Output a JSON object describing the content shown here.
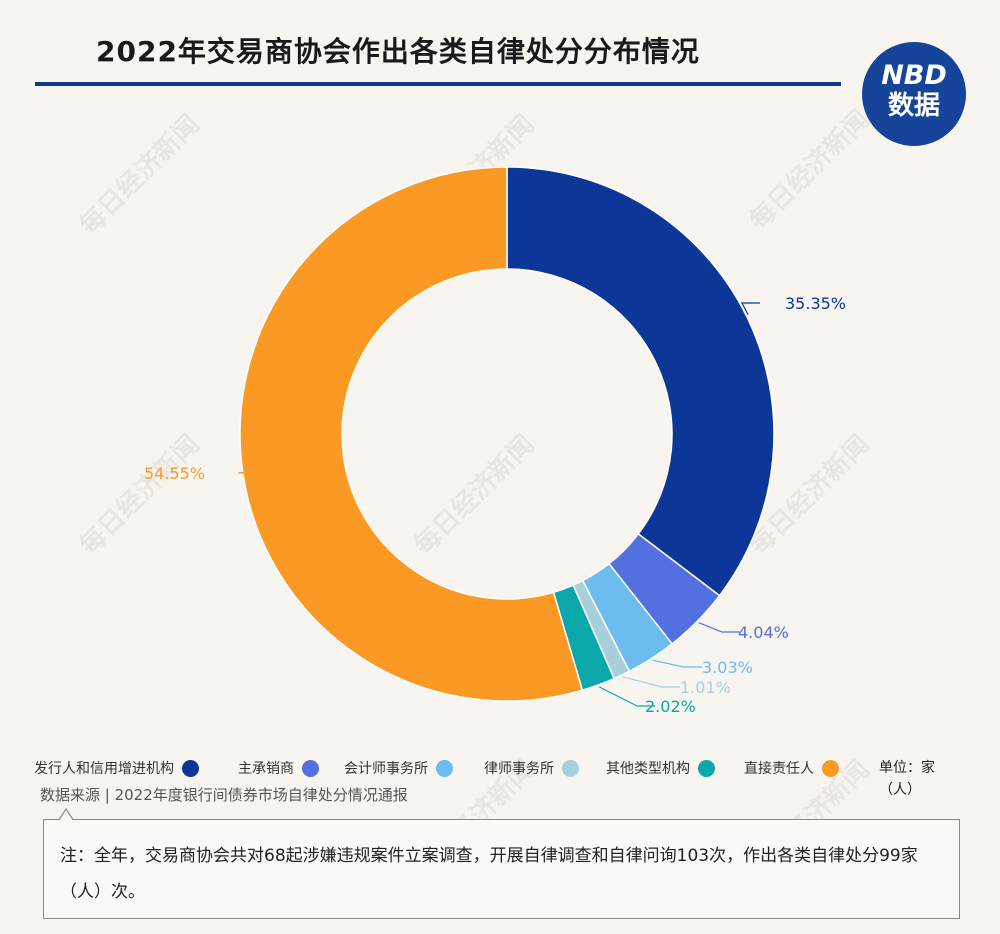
{
  "header": {
    "title": "2022年交易商协会作出各类自律处分分布情况",
    "logo_line1": "NBD",
    "logo_line2": "数据"
  },
  "watermark": "每日经济新闻",
  "chart_data": {
    "type": "donut",
    "title": "2022年交易商协会作出各类自律处分分布情况",
    "unit": "单位：家（人）",
    "slices": [
      {
        "name": "发行人和信用增进机构",
        "value": 35.35,
        "label": "35.35%",
        "color": "#0d3699"
      },
      {
        "name": "主承销商",
        "value": 4.04,
        "label": "4.04%",
        "color": "#5370e0"
      },
      {
        "name": "会计师事务所",
        "value": 3.03,
        "label": "3.03%",
        "color": "#6cbcf0"
      },
      {
        "name": "律师事务所",
        "value": 1.01,
        "label": "1.01%",
        "color": "#a8d0dc"
      },
      {
        "name": "其他类型机构",
        "value": 2.02,
        "label": "2.02%",
        "color": "#0aa8a8"
      },
      {
        "name": "直接责任人",
        "value": 54.55,
        "label": "54.55%",
        "color": "#fa9a25"
      }
    ]
  },
  "legend": {
    "unit": "单位：家（人）"
  },
  "source": "数据来源 | 2022年度银行间债券市场自律处分情况通报",
  "note": "注：全年，交易商协会共对68起涉嫌违规案件立案调查，开展自律调查和自律问询103次，作出各类自律处分99家（人）次。"
}
